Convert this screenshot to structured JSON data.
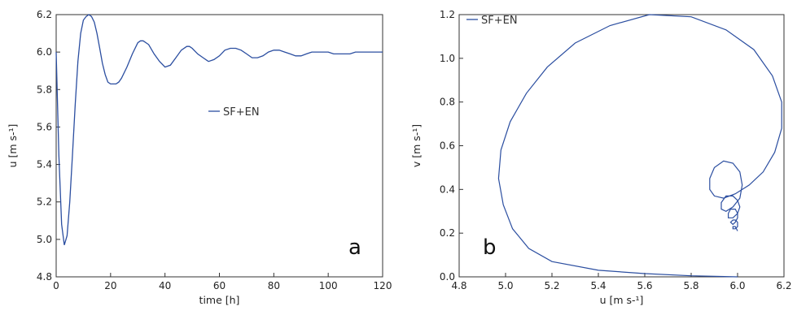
{
  "chart_data": [
    {
      "type": "line",
      "panel_label": "a",
      "xlabel": "time [h]",
      "ylabel": "u [m s-¹]",
      "xlim": [
        0,
        120
      ],
      "ylim": [
        4.8,
        6.2
      ],
      "xticks": [
        "0",
        "20",
        "40",
        "60",
        "80",
        "100",
        "120"
      ],
      "yticks": [
        "4.8",
        "5.0",
        "5.2",
        "5.4",
        "5.6",
        "5.8",
        "6.0",
        "6.2"
      ],
      "grid": false,
      "legend": "center",
      "series": [
        {
          "name": "SF+EN",
          "color": "#2b4ea0",
          "x": [
            0,
            1,
            2,
            3,
            4,
            5,
            6,
            7,
            8,
            9,
            10,
            11,
            12,
            13,
            14,
            15,
            16,
            17,
            18,
            19,
            20,
            21,
            22,
            23,
            24,
            26,
            28,
            30,
            31,
            32,
            34,
            36,
            38,
            40,
            42,
            44,
            46,
            48,
            49,
            50,
            52,
            54,
            56,
            58,
            60,
            62,
            64,
            66,
            68,
            70,
            72,
            74,
            76,
            78,
            80,
            82,
            84,
            86,
            88,
            90,
            92,
            94,
            96,
            98,
            100,
            102,
            104,
            106,
            108,
            110,
            112,
            114,
            116,
            118,
            120
          ],
          "y": [
            6.0,
            5.45,
            5.08,
            4.97,
            5.02,
            5.2,
            5.45,
            5.72,
            5.95,
            6.1,
            6.17,
            6.19,
            6.2,
            6.19,
            6.16,
            6.1,
            6.02,
            5.94,
            5.88,
            5.84,
            5.83,
            5.83,
            5.83,
            5.84,
            5.86,
            5.92,
            5.99,
            6.05,
            6.06,
            6.06,
            6.04,
            5.99,
            5.95,
            5.92,
            5.93,
            5.97,
            6.01,
            6.03,
            6.03,
            6.02,
            5.99,
            5.97,
            5.95,
            5.96,
            5.98,
            6.01,
            6.02,
            6.02,
            6.01,
            5.99,
            5.97,
            5.97,
            5.98,
            6.0,
            6.01,
            6.01,
            6.0,
            5.99,
            5.98,
            5.98,
            5.99,
            6.0,
            6.0,
            6.0,
            6.0,
            5.99,
            5.99,
            5.99,
            5.99,
            6.0,
            6.0,
            6.0,
            6.0,
            6.0,
            6.0
          ]
        }
      ]
    },
    {
      "type": "line",
      "panel_label": "b",
      "xlabel": "u [m s-¹]",
      "ylabel": "v [m s-¹]",
      "xlim": [
        4.8,
        6.2
      ],
      "ylim": [
        0.0,
        1.2
      ],
      "xticks": [
        "4.8",
        "5.0",
        "5.2",
        "5.4",
        "5.6",
        "5.8",
        "6.0",
        "6.2"
      ],
      "yticks": [
        "0.0",
        "0.2",
        "0.4",
        "0.6",
        "0.8",
        "1.0",
        "1.2"
      ],
      "grid": false,
      "legend": "top-left",
      "series": [
        {
          "name": "SF+EN",
          "color": "#2b4ea0",
          "x": [
            6.0,
            5.8,
            5.6,
            5.4,
            5.2,
            5.1,
            5.03,
            4.99,
            4.97,
            4.98,
            5.02,
            5.09,
            5.18,
            5.3,
            5.45,
            5.62,
            5.8,
            5.95,
            6.07,
            6.15,
            6.19,
            6.19,
            6.16,
            6.11,
            6.05,
            5.99,
            5.94,
            5.9,
            5.88,
            5.88,
            5.9,
            5.94,
            5.98,
            6.01,
            6.02,
            6.01,
            5.98,
            5.95,
            5.93,
            5.93,
            5.95,
            5.98,
            6.0,
            6.01,
            6.0,
            5.98,
            5.96,
            5.96,
            5.97,
            5.99,
            6.0,
            6.0,
            5.99,
            5.98,
            5.97,
            5.98,
            5.99,
            6.0,
            6.0,
            5.99,
            5.98,
            5.98,
            5.99,
            6.0
          ],
          "y": [
            0.0,
            0.005,
            0.015,
            0.03,
            0.07,
            0.13,
            0.22,
            0.33,
            0.45,
            0.58,
            0.71,
            0.84,
            0.96,
            1.07,
            1.15,
            1.2,
            1.19,
            1.13,
            1.04,
            0.92,
            0.8,
            0.68,
            0.57,
            0.48,
            0.42,
            0.38,
            0.36,
            0.37,
            0.4,
            0.45,
            0.5,
            0.53,
            0.52,
            0.48,
            0.42,
            0.36,
            0.32,
            0.3,
            0.31,
            0.34,
            0.37,
            0.37,
            0.35,
            0.32,
            0.29,
            0.27,
            0.27,
            0.29,
            0.31,
            0.31,
            0.29,
            0.27,
            0.25,
            0.24,
            0.25,
            0.26,
            0.26,
            0.25,
            0.23,
            0.22,
            0.22,
            0.23,
            0.23,
            0.21
          ]
        }
      ]
    }
  ]
}
